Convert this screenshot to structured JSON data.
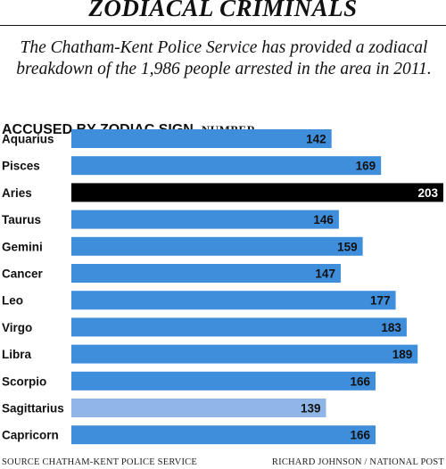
{
  "title": "ZODIACAL CRIMINALS",
  "subtitle": "The Chatham-Kent Police Service has provided a zodiacal breakdown of the 1,986 people arrested in the area in 2011.",
  "footer": {
    "source": "SOURCE CHATHAM-KENT POLICE SERVICE",
    "credit": "RICHARD JOHNSON / NATIONAL POST"
  },
  "colors": {
    "bar": "#3f8edb",
    "highlight": "#000000",
    "lowest": "#8fb6e6",
    "label_on_bar": "#111111",
    "label_on_highlight": "#ffffff"
  },
  "chart_data": {
    "type": "bar",
    "orientation": "horizontal",
    "title": "ACCUSED BY ZODIAC SIGN",
    "unit_label": "NUMBER",
    "categories": [
      "Aquarius",
      "Pisces",
      "Aries",
      "Taurus",
      "Gemini",
      "Cancer",
      "Leo",
      "Virgo",
      "Libra",
      "Scorpio",
      "Sagittarius",
      "Capricorn"
    ],
    "values": [
      142,
      169,
      203,
      146,
      159,
      147,
      177,
      183,
      189,
      166,
      139,
      166
    ],
    "highlighted_category": "Aries",
    "lowest_category": "Sagittarius",
    "xlim": [
      0,
      203
    ],
    "grid": false,
    "legend": "none",
    "data_labels": "inside-end"
  }
}
